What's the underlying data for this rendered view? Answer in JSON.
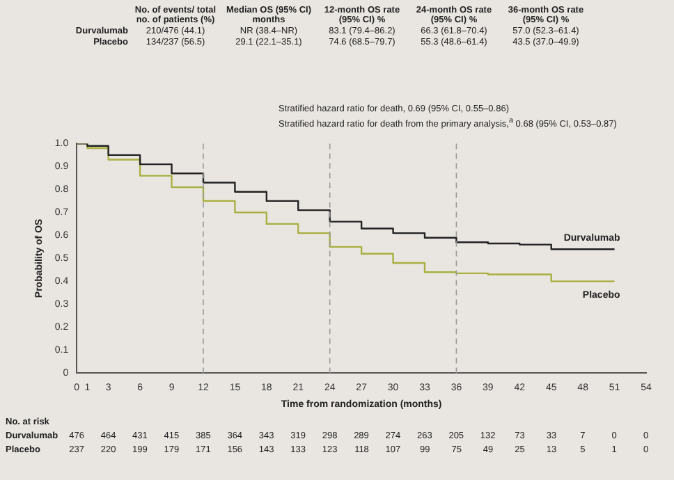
{
  "chart_data": {
    "type": "step",
    "xlabel": "Time from randomization (months)",
    "ylabel": "Probability of OS",
    "annotations": [
      "No. of events/ total no. of patients (%)",
      "Median OS (95% CI) months",
      "12-month OS rate (95% CI) %",
      "24-month OS rate (95% CI) %",
      "36-month OS rate (95% CI) %",
      "Durvalumab",
      "210/476 (44.1)",
      "NR (38.4–NR)",
      "83.1 (79.4–86.2)",
      "66.3 (61.8–70.4)",
      "57.0 (52.3–61.4)",
      "Placebo",
      "134/237 (56.5)",
      "29.1 (22.1–35.1)",
      "74.6 (68.5–79.7)",
      "55.3 (48.6–61.4)",
      "43.5 (37.0–49.9)",
      "Stratified hazard ratio for death, 0.69 (95% CI, 0.55–0.86)",
      "Stratified hazard ratio for death from the primary analysis,$^{a}$ 0.68 (95% CI, 0.53–0.87)",
      "No. at risk",
      "Durvalumab",
      "476 464 431 415 385 364 343 319 298 289 274 263 205 132 73 33 7 0 0",
      "Placebo",
      "237 220 199 179 171 156 143 133 123 118 107 99 75 49 25 13 5 1 0"
    ],
    "x": [
      0,
      1,
      3,
      6,
      9,
      12,
      15,
      18,
      21,
      24,
      27,
      30,
      33,
      36,
      39,
      42,
      45,
      48,
      51
    ],
    "series": [
      {
        "name": "Durvalumab",
        "color": "#222222",
        "values": [
          1,
          0.99,
          0.95,
          0.91,
          0.87,
          0.83,
          0.79,
          0.75,
          0.71,
          0.66,
          0.63,
          0.61,
          0.59,
          0.57,
          0.565,
          0.56,
          0.54,
          0.54,
          0.54
        ]
      },
      {
        "name": "Placebo",
        "color": "#a8b040",
        "values": [
          1,
          0.98,
          0.93,
          0.86,
          0.81,
          0.75,
          0.7,
          0.65,
          0.61,
          0.55,
          0.52,
          0.48,
          0.44,
          0.435,
          0.43,
          0.43,
          0.4,
          0.4,
          0.4
        ]
      }
    ],
    "xlim": [
      0,
      54
    ],
    "xticks": [
      0,
      1,
      3,
      6,
      9,
      12,
      15,
      18,
      21,
      24,
      27,
      30,
      33,
      36,
      39,
      42,
      45,
      48,
      51,
      54
    ],
    "ylim": [
      0,
      1
    ],
    "yticks": [
      {
        "value": 0,
        "label": "0"
      },
      0.1,
      0.2,
      0.3,
      0.4,
      0.5,
      0.6,
      0.7,
      0.8,
      0.9,
      {
        "value": 1,
        "label": "1.0"
      }
    ],
    "ref_lines": [
      {
        "axis": "x",
        "value": 12,
        "line_style": "dashed",
        "color": "#999999"
      },
      {
        "axis": "x",
        "value": 24,
        "line_style": "dashed",
        "color": "#999999"
      },
      {
        "axis": "x",
        "value": 36,
        "line_style": "dashed",
        "color": "#999999"
      }
    ],
    "grid": false,
    "legend": false,
    "marker": "none"
  }
}
